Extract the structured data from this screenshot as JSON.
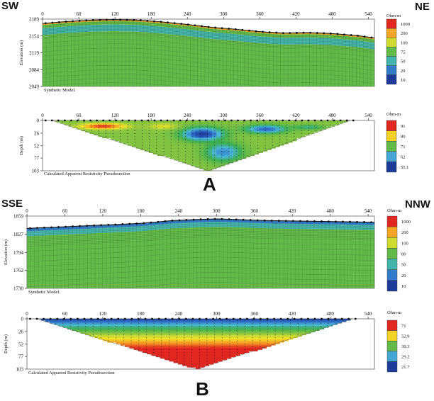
{
  "labels": {
    "panel_a": "A",
    "panel_b": "B",
    "a_left": "SW",
    "a_right": "NE",
    "b_left": "SSE",
    "b_right": "NNW"
  },
  "chart_data": [
    {
      "type": "heatmap",
      "panel": "A",
      "title": "",
      "caption": "Synthetic Model.",
      "xlabel": "",
      "ylabel": "Elevation (m)",
      "x_ticks": [
        0,
        60,
        120,
        180,
        240,
        300,
        360,
        420,
        480,
        540
      ],
      "xlim": [
        0,
        550
      ],
      "y_ticks": [
        2189,
        2154,
        2119,
        2084,
        2049
      ],
      "ylim": [
        2049,
        2189
      ],
      "surface": {
        "x": [
          0,
          40,
          80,
          120,
          160,
          200,
          240,
          280,
          320,
          360,
          400,
          440,
          480,
          520,
          550
        ],
        "y": [
          2180,
          2184,
          2187,
          2188,
          2187,
          2183,
          2178,
          2172,
          2168,
          2163,
          2160,
          2161,
          2159,
          2155,
          2150
        ]
      },
      "layers_depth_below_surface_m": [
        {
          "from": 0,
          "to": 3,
          "ohm_m": 200
        },
        {
          "from": 3,
          "to": 10,
          "ohm_m": 75
        },
        {
          "from": 10,
          "to": 24,
          "ohm_m": 50
        },
        {
          "from": 24,
          "to": 140,
          "ohm_m": 75
        }
      ],
      "colorbar": {
        "unit": "Ohm-m",
        "labels": [
          "1000",
          "200",
          "100",
          "75",
          "50",
          "20",
          "10"
        ]
      }
    },
    {
      "type": "heatmap",
      "panel": "A",
      "title": "",
      "caption": "Calculated Apparent Resistivity Pseudosection",
      "xlabel": "",
      "ylabel": "Depth (m)",
      "x_ticks": [
        0,
        60,
        120,
        180,
        240,
        300,
        360,
        420,
        480,
        540
      ],
      "xlim": [
        0,
        550
      ],
      "y_ticks": [
        0,
        26,
        52,
        77,
        103
      ],
      "ylim": [
        0,
        103
      ],
      "pseudosection": {
        "left_x": 15,
        "right_x": 510,
        "apex_x": 275,
        "apex_depth": 103
      },
      "background_ohm_m": 75,
      "anomalies": [
        {
          "x": 265,
          "depth": 28,
          "rx": 40,
          "rdepth": 16,
          "ohm_m": 55.1
        },
        {
          "x": 370,
          "depth": 18,
          "rx": 40,
          "rdepth": 10,
          "ohm_m": 59
        },
        {
          "x": 100,
          "depth": 12,
          "rx": 45,
          "rdepth": 7,
          "ohm_m": 91
        },
        {
          "x": 200,
          "depth": 12,
          "rx": 30,
          "rdepth": 8,
          "ohm_m": 80
        },
        {
          "x": 300,
          "depth": 65,
          "rx": 35,
          "rdepth": 22,
          "ohm_m": 62
        },
        {
          "x": 440,
          "depth": 14,
          "rx": 30,
          "rdepth": 6,
          "ohm_m": 68
        }
      ],
      "colorbar": {
        "unit": "Ohm-m",
        "labels": [
          "91",
          "80",
          "71",
          "62",
          "55.1"
        ]
      }
    },
    {
      "type": "heatmap",
      "panel": "B",
      "title": "",
      "caption": "Synthetic Model.",
      "xlabel": "",
      "ylabel": "Elevation (m)",
      "x_ticks": [
        0,
        60,
        120,
        180,
        240,
        300,
        360,
        420,
        480,
        540
      ],
      "xlim": [
        0,
        550
      ],
      "y_ticks": [
        1859,
        1827,
        1794,
        1762,
        1730
      ],
      "ylim": [
        1730,
        1859
      ],
      "surface": {
        "x": [
          0,
          60,
          120,
          180,
          230,
          270,
          300,
          330,
          380,
          440,
          500,
          550
        ],
        "y": [
          1837,
          1840,
          1843,
          1846,
          1851,
          1853,
          1854,
          1853,
          1851,
          1850,
          1849,
          1848
        ]
      },
      "layers_depth_below_surface_m": [
        {
          "from": 0,
          "to": 5,
          "ohm_m": 20
        },
        {
          "from": 5,
          "to": 14,
          "ohm_m": 50
        },
        {
          "from": 14,
          "to": 130,
          "ohm_m": 80
        }
      ],
      "colorbar": {
        "unit": "Ohm-m",
        "labels": [
          "1000",
          "200",
          "100",
          "80",
          "50",
          "20",
          "10"
        ]
      }
    },
    {
      "type": "heatmap",
      "panel": "B",
      "title": "",
      "caption": "Calculated Apparent Resistivity Pseudosection",
      "xlabel": "",
      "ylabel": "Depth (m)",
      "x_ticks": [
        0,
        60,
        120,
        180,
        240,
        300,
        360,
        420,
        480,
        540
      ],
      "xlim": [
        0,
        550
      ],
      "y_ticks": [
        0,
        26,
        52,
        77,
        103
      ],
      "ylim": [
        0,
        103
      ],
      "pseudosection": {
        "left_x": 15,
        "right_x": 515,
        "apex_x": 270,
        "apex_depth": 103
      },
      "depth_profile_ohm_m": [
        {
          "depth": 0,
          "ohm_m": 21.7
        },
        {
          "depth": 6,
          "ohm_m": 29.2
        },
        {
          "depth": 16,
          "ohm_m": 39.3
        },
        {
          "depth": 34,
          "ohm_m": 52.9
        },
        {
          "depth": 60,
          "ohm_m": 71
        }
      ],
      "colorbar": {
        "unit": "Ohm-m",
        "labels": [
          "71",
          "52.9",
          "39.3",
          "29.2",
          "21.7"
        ]
      }
    }
  ]
}
